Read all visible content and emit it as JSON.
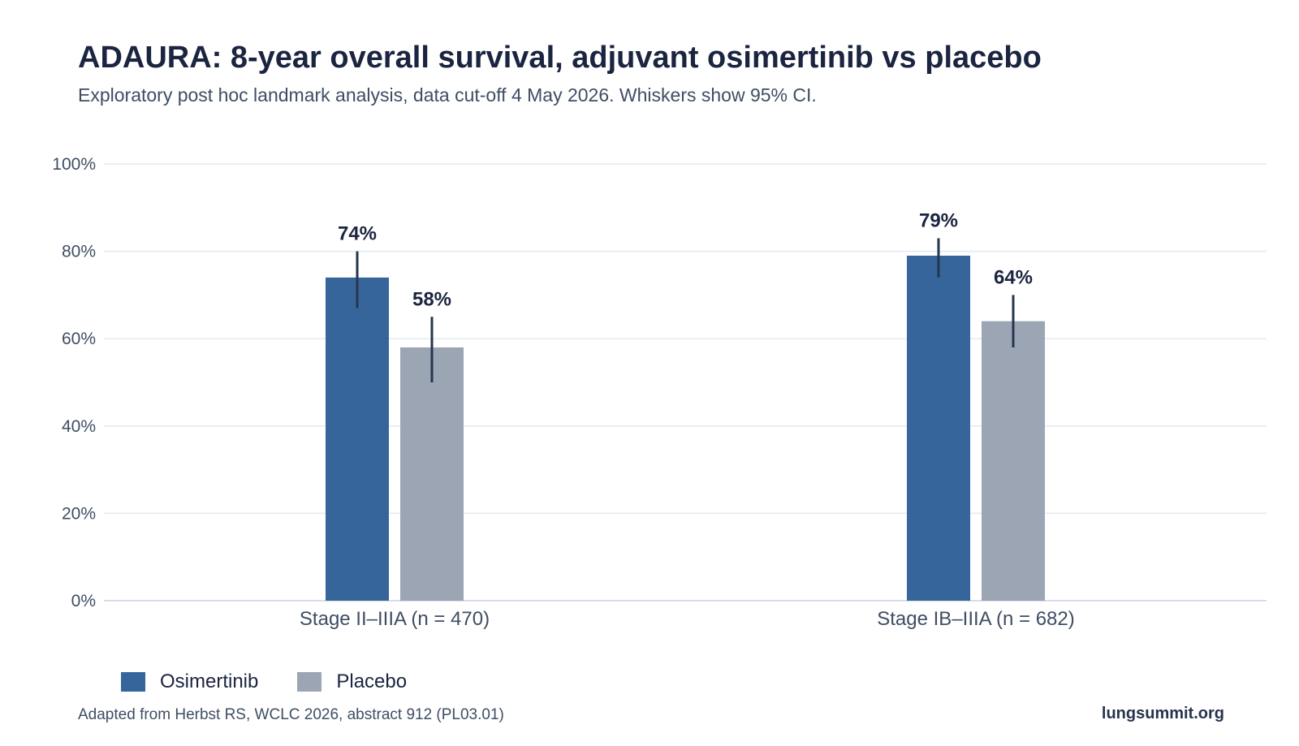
{
  "header": {
    "title": "ADAURA: 8-year overall survival, adjuvant osimertinib vs placebo",
    "subtitle": "Exploratory post hoc landmark analysis, data cut-off 4 May 2026. Whiskers show 95% CI."
  },
  "chart_data": {
    "type": "bar",
    "categories": [
      "Stage II–IIIA (n = 470)",
      "Stage IB–IIIA (n = 682)"
    ],
    "series": [
      {
        "name": "Osimertinib",
        "color": "#35659a",
        "values": [
          74,
          79
        ],
        "value_labels": [
          "74%",
          "79%"
        ],
        "ci": [
          [
            67,
            80
          ],
          [
            74,
            83
          ]
        ]
      },
      {
        "name": "Placebo",
        "color": "#9ca5b4",
        "values": [
          58,
          64
        ],
        "value_labels": [
          "58%",
          "64%"
        ],
        "ci": [
          [
            50,
            65
          ],
          [
            58,
            70
          ]
        ]
      }
    ],
    "ylim": [
      0,
      100
    ],
    "yticks": [
      0,
      20,
      40,
      60,
      80,
      100
    ],
    "ytick_labels": [
      "0%",
      "20%",
      "40%",
      "60%",
      "80%",
      "100%"
    ],
    "grid": true,
    "legend_position": "bottom-left",
    "whisker_color": "#26354f"
  },
  "footer": {
    "source": "Adapted from Herbst RS, WCLC 2026, abstract 912 (PL03.01)",
    "brand": "lungsummit.org"
  }
}
